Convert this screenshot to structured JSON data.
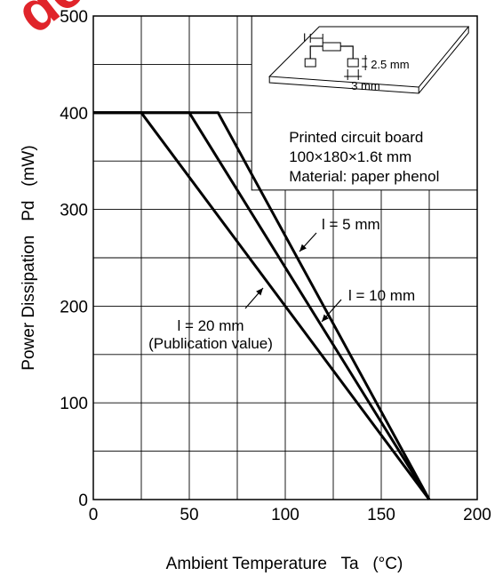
{
  "watermark": {
    "text": "de",
    "color": "#e0242a"
  },
  "chart_data": {
    "type": "line",
    "xlabel": "Ambient Temperature   Ta   (°C)",
    "ylabel": "Power Dissipation   Pd   (mW)",
    "xlim": [
      0,
      200
    ],
    "ylim": [
      0,
      500
    ],
    "x_ticks": [
      0,
      50,
      100,
      150,
      200
    ],
    "y_ticks": [
      0,
      100,
      200,
      300,
      400,
      500
    ],
    "x_grid_step": 25,
    "y_grid_step": 50,
    "grid": true,
    "series": [
      {
        "name": "l = 5 mm",
        "points": [
          [
            0,
            400
          ],
          [
            65,
            400
          ],
          [
            175,
            0
          ]
        ]
      },
      {
        "name": "l = 10 mm",
        "points": [
          [
            0,
            400
          ],
          [
            50,
            400
          ],
          [
            175,
            0
          ]
        ]
      },
      {
        "name": "l = 20 mm",
        "points": [
          [
            0,
            400
          ],
          [
            25,
            400
          ],
          [
            175,
            0
          ]
        ]
      }
    ],
    "annotations": [
      {
        "text": "l = 5 mm"
      },
      {
        "text": "l = 10 mm"
      },
      {
        "text": "l = 20 mm"
      },
      {
        "text": "(Publication value)"
      }
    ],
    "inset": {
      "lines": [
        "Printed circuit board",
        "100×180×1.6t mm",
        "Material: paper phenol"
      ],
      "lead_label": "l",
      "pad_width_label": "2.5 mm",
      "pad_length_label": "3 mm"
    }
  }
}
